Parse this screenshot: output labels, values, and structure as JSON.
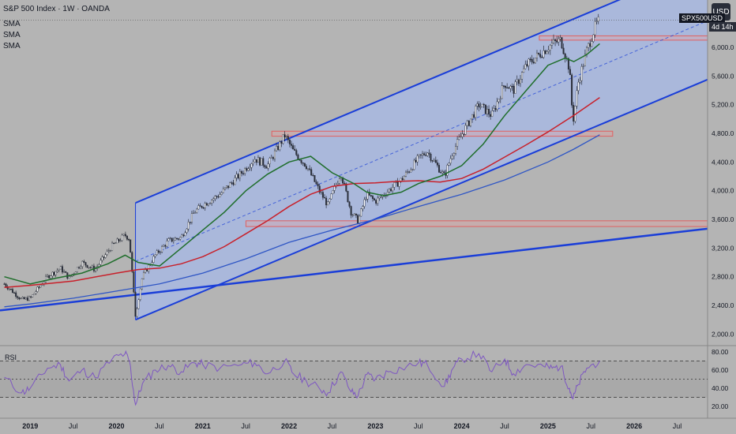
{
  "header": {
    "title": "S&P 500 Index · 1W · OANDA",
    "indicators": [
      "SMA",
      "SMA",
      "SMA"
    ]
  },
  "symbol_badge": "SPX500USD",
  "countdown": "4d 14h",
  "currency_button": "USD",
  "rsi_pane": {
    "label": "RSI",
    "ticks": [
      "80.00",
      "60.00",
      "40.00",
      "20.00"
    ]
  },
  "colors": {
    "background": "#b4b4b4",
    "channel_fill": "#a9b8df",
    "channel_line": "#1a3ed8",
    "sma_green": "#1f6e2b",
    "sma_red": "#c8202a",
    "sma_blue": "#2f56c5",
    "zone_stroke": "#e06060",
    "rsi_line": "#7e57c2"
  },
  "chart_data": {
    "type": "candlestick",
    "title": "S&P 500 Index · 1W · OANDA",
    "ylim": [
      1850,
      6550
    ],
    "y_ticks": [
      "6,000.0",
      "5,600.0",
      "5,200.0",
      "4,800.0",
      "4,400.0",
      "4,000.0",
      "3,600.0",
      "3,200.0",
      "2,800.0",
      "2,400.0",
      "2,000.0"
    ],
    "x_ticks": [
      "2019",
      "Jul",
      "2020",
      "Jul",
      "2021",
      "Jul",
      "2022",
      "Jul",
      "2023",
      "Jul",
      "2024",
      "Jul",
      "2025",
      "Jul",
      "2026",
      "Jul"
    ],
    "xlim": [
      2018.65,
      2026.85
    ],
    "price_path": [
      [
        2018.7,
        2700
      ],
      [
        2018.9,
        2480
      ],
      [
        2019.0,
        2500
      ],
      [
        2019.2,
        2800
      ],
      [
        2019.35,
        2920
      ],
      [
        2019.45,
        2780
      ],
      [
        2019.6,
        3000
      ],
      [
        2019.75,
        2900
      ],
      [
        2019.95,
        3230
      ],
      [
        2020.1,
        3380
      ],
      [
        2020.15,
        3330
      ],
      [
        2020.22,
        2250
      ],
      [
        2020.3,
        2800
      ],
      [
        2020.45,
        3100
      ],
      [
        2020.6,
        3300
      ],
      [
        2020.75,
        3350
      ],
      [
        2020.9,
        3700
      ],
      [
        2021.0,
        3800
      ],
      [
        2021.2,
        3950
      ],
      [
        2021.45,
        4250
      ],
      [
        2021.6,
        4450
      ],
      [
        2021.75,
        4350
      ],
      [
        2021.95,
        4770
      ],
      [
        2022.05,
        4550
      ],
      [
        2022.2,
        4350
      ],
      [
        2022.35,
        4000
      ],
      [
        2022.45,
        3800
      ],
      [
        2022.6,
        4250
      ],
      [
        2022.72,
        3700
      ],
      [
        2022.8,
        3580
      ],
      [
        2022.9,
        3950
      ],
      [
        2023.0,
        3850
      ],
      [
        2023.15,
        4000
      ],
      [
        2023.3,
        4150
      ],
      [
        2023.5,
        4450
      ],
      [
        2023.6,
        4550
      ],
      [
        2023.8,
        4200
      ],
      [
        2023.9,
        4550
      ],
      [
        2024.0,
        4780
      ],
      [
        2024.2,
        5200
      ],
      [
        2024.35,
        5050
      ],
      [
        2024.5,
        5500
      ],
      [
        2024.6,
        5400
      ],
      [
        2024.75,
        5750
      ],
      [
        2024.95,
        5950
      ],
      [
        2025.05,
        6050
      ],
      [
        2025.15,
        6100
      ],
      [
        2025.25,
        5700
      ],
      [
        2025.29,
        4950
      ],
      [
        2025.35,
        5500
      ],
      [
        2025.45,
        5950
      ],
      [
        2025.55,
        6300
      ],
      [
        2025.6,
        6380
      ]
    ],
    "sma_green": [
      [
        2018.7,
        2800
      ],
      [
        2019.0,
        2700
      ],
      [
        2019.3,
        2780
      ],
      [
        2019.6,
        2850
      ],
      [
        2019.9,
        2980
      ],
      [
        2020.1,
        3100
      ],
      [
        2020.25,
        3000
      ],
      [
        2020.5,
        2950
      ],
      [
        2020.75,
        3200
      ],
      [
        2021.0,
        3450
      ],
      [
        2021.25,
        3700
      ],
      [
        2021.5,
        4000
      ],
      [
        2021.75,
        4230
      ],
      [
        2022.0,
        4400
      ],
      [
        2022.25,
        4480
      ],
      [
        2022.5,
        4250
      ],
      [
        2022.75,
        4100
      ],
      [
        2022.9,
        3980
      ],
      [
        2023.1,
        3930
      ],
      [
        2023.3,
        3980
      ],
      [
        2023.5,
        4100
      ],
      [
        2023.75,
        4200
      ],
      [
        2024.0,
        4350
      ],
      [
        2024.25,
        4650
      ],
      [
        2024.5,
        5050
      ],
      [
        2024.75,
        5400
      ],
      [
        2025.0,
        5750
      ],
      [
        2025.2,
        5850
      ],
      [
        2025.3,
        5800
      ],
      [
        2025.45,
        5900
      ],
      [
        2025.6,
        6050
      ]
    ],
    "sma_red": [
      [
        2018.7,
        2650
      ],
      [
        2019.0,
        2680
      ],
      [
        2019.5,
        2740
      ],
      [
        2020.0,
        2850
      ],
      [
        2020.25,
        2900
      ],
      [
        2020.5,
        2920
      ],
      [
        2020.75,
        2980
      ],
      [
        2021.0,
        3080
      ],
      [
        2021.25,
        3220
      ],
      [
        2021.5,
        3400
      ],
      [
        2021.75,
        3580
      ],
      [
        2022.0,
        3780
      ],
      [
        2022.25,
        3950
      ],
      [
        2022.5,
        4060
      ],
      [
        2022.75,
        4100
      ],
      [
        2023.0,
        4110
      ],
      [
        2023.25,
        4130
      ],
      [
        2023.5,
        4140
      ],
      [
        2023.75,
        4120
      ],
      [
        2024.0,
        4170
      ],
      [
        2024.25,
        4300
      ],
      [
        2024.5,
        4470
      ],
      [
        2024.75,
        4640
      ],
      [
        2025.0,
        4820
      ],
      [
        2025.3,
        5050
      ],
      [
        2025.6,
        5300
      ]
    ],
    "sma_blue": [
      [
        2018.7,
        2380
      ],
      [
        2019.0,
        2420
      ],
      [
        2019.5,
        2500
      ],
      [
        2020.0,
        2600
      ],
      [
        2020.5,
        2700
      ],
      [
        2021.0,
        2850
      ],
      [
        2021.5,
        3050
      ],
      [
        2022.0,
        3280
      ],
      [
        2022.5,
        3450
      ],
      [
        2023.0,
        3600
      ],
      [
        2023.5,
        3780
      ],
      [
        2024.0,
        3950
      ],
      [
        2024.5,
        4150
      ],
      [
        2025.0,
        4400
      ],
      [
        2025.3,
        4580
      ],
      [
        2025.6,
        4780
      ]
    ],
    "rsi": {
      "ylim": [
        15,
        85
      ],
      "levels": [
        70,
        50,
        30
      ],
      "points": [
        [
          2018.7,
          52
        ],
        [
          2018.9,
          35
        ],
        [
          2019.0,
          40
        ],
        [
          2019.2,
          62
        ],
        [
          2019.35,
          66
        ],
        [
          2019.45,
          48
        ],
        [
          2019.6,
          60
        ],
        [
          2019.75,
          52
        ],
        [
          2019.95,
          72
        ],
        [
          2020.1,
          78
        ],
        [
          2020.15,
          70
        ],
        [
          2020.22,
          22
        ],
        [
          2020.3,
          45
        ],
        [
          2020.45,
          60
        ],
        [
          2020.6,
          65
        ],
        [
          2020.75,
          58
        ],
        [
          2020.9,
          68
        ],
        [
          2021.0,
          66
        ],
        [
          2021.2,
          62
        ],
        [
          2021.45,
          66
        ],
        [
          2021.6,
          68
        ],
        [
          2021.75,
          56
        ],
        [
          2021.95,
          70
        ],
        [
          2022.05,
          56
        ],
        [
          2022.2,
          48
        ],
        [
          2022.35,
          40
        ],
        [
          2022.45,
          35
        ],
        [
          2022.6,
          58
        ],
        [
          2022.72,
          36
        ],
        [
          2022.8,
          32
        ],
        [
          2022.9,
          55
        ],
        [
          2023.0,
          50
        ],
        [
          2023.15,
          58
        ],
        [
          2023.3,
          62
        ],
        [
          2023.5,
          68
        ],
        [
          2023.6,
          66
        ],
        [
          2023.8,
          42
        ],
        [
          2023.9,
          62
        ],
        [
          2024.0,
          72
        ],
        [
          2024.2,
          78
        ],
        [
          2024.35,
          58
        ],
        [
          2024.5,
          72
        ],
        [
          2024.6,
          56
        ],
        [
          2024.75,
          66
        ],
        [
          2024.95,
          64
        ],
        [
          2025.05,
          62
        ],
        [
          2025.15,
          64
        ],
        [
          2025.25,
          40
        ],
        [
          2025.29,
          28
        ],
        [
          2025.35,
          44
        ],
        [
          2025.45,
          62
        ],
        [
          2025.6,
          70
        ]
      ]
    }
  },
  "drawings": {
    "channel_upper": [
      [
        2020.22,
        3830
      ],
      [
        2025.9,
        6700
      ]
    ],
    "channel_lower": [
      [
        2020.22,
        2200
      ],
      [
        2026.85,
        5550
      ]
    ],
    "channel_mid": [
      [
        2020.22,
        3015
      ],
      [
        2026.85,
        6370
      ]
    ],
    "long_trendline": [
      [
        2018.65,
        2330
      ],
      [
        2026.85,
        3470
      ]
    ],
    "zones": [
      {
        "x": [
          2021.8,
          2025.75
        ],
        "y": [
          4760,
          4830
        ]
      },
      {
        "x": [
          2021.5,
          2026.85
        ],
        "y": [
          3500,
          3580
        ]
      },
      {
        "x": [
          2024.9,
          2026.85
        ],
        "y": [
          6100,
          6160
        ]
      }
    ]
  }
}
